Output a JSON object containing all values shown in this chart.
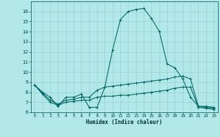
{
  "xlabel": "Humidex (Indice chaleur)",
  "background_color": "#b3e8e8",
  "line_color": "#006666",
  "grid_color": "#88cccc",
  "xlim": [
    -0.5,
    23.5
  ],
  "ylim": [
    6,
    17
  ],
  "yticks": [
    6,
    7,
    8,
    9,
    10,
    11,
    12,
    13,
    14,
    15,
    16
  ],
  "xticks": [
    0,
    1,
    2,
    3,
    4,
    5,
    6,
    7,
    8,
    9,
    10,
    11,
    12,
    13,
    14,
    15,
    16,
    17,
    18,
    19,
    20,
    21,
    22,
    23
  ],
  "series": [
    {
      "x": [
        0,
        1,
        2,
        3,
        4,
        5,
        6,
        7,
        8,
        9,
        10,
        11,
        12,
        13,
        14,
        15,
        16,
        17,
        18,
        19,
        20,
        21,
        22,
        23
      ],
      "y": [
        8.7,
        8.0,
        7.5,
        6.6,
        7.5,
        7.5,
        7.8,
        6.5,
        6.5,
        8.5,
        12.2,
        15.2,
        16.0,
        16.2,
        16.3,
        15.3,
        14.0,
        10.8,
        10.4,
        9.3,
        7.5,
        6.6,
        6.6,
        6.5
      ]
    },
    {
      "x": [
        0,
        1,
        2,
        3,
        4,
        5,
        6,
        7,
        8,
        9,
        10,
        11,
        12,
        13,
        14,
        15,
        16,
        17,
        18,
        19,
        20,
        21,
        22,
        23
      ],
      "y": [
        8.7,
        7.9,
        7.2,
        6.8,
        7.2,
        7.3,
        7.5,
        7.5,
        8.2,
        8.5,
        8.6,
        8.7,
        8.8,
        8.9,
        9.0,
        9.1,
        9.2,
        9.3,
        9.5,
        9.6,
        9.3,
        6.6,
        6.5,
        6.4
      ]
    },
    {
      "x": [
        0,
        1,
        2,
        3,
        4,
        5,
        6,
        7,
        8,
        9,
        10,
        11,
        12,
        13,
        14,
        15,
        16,
        17,
        18,
        19,
        20,
        21,
        22,
        23
      ],
      "y": [
        8.7,
        7.8,
        7.0,
        6.7,
        7.0,
        7.1,
        7.2,
        7.2,
        7.5,
        7.6,
        7.6,
        7.7,
        7.7,
        7.8,
        7.9,
        8.0,
        8.1,
        8.2,
        8.4,
        8.5,
        8.5,
        6.5,
        6.4,
        6.3
      ]
    }
  ]
}
